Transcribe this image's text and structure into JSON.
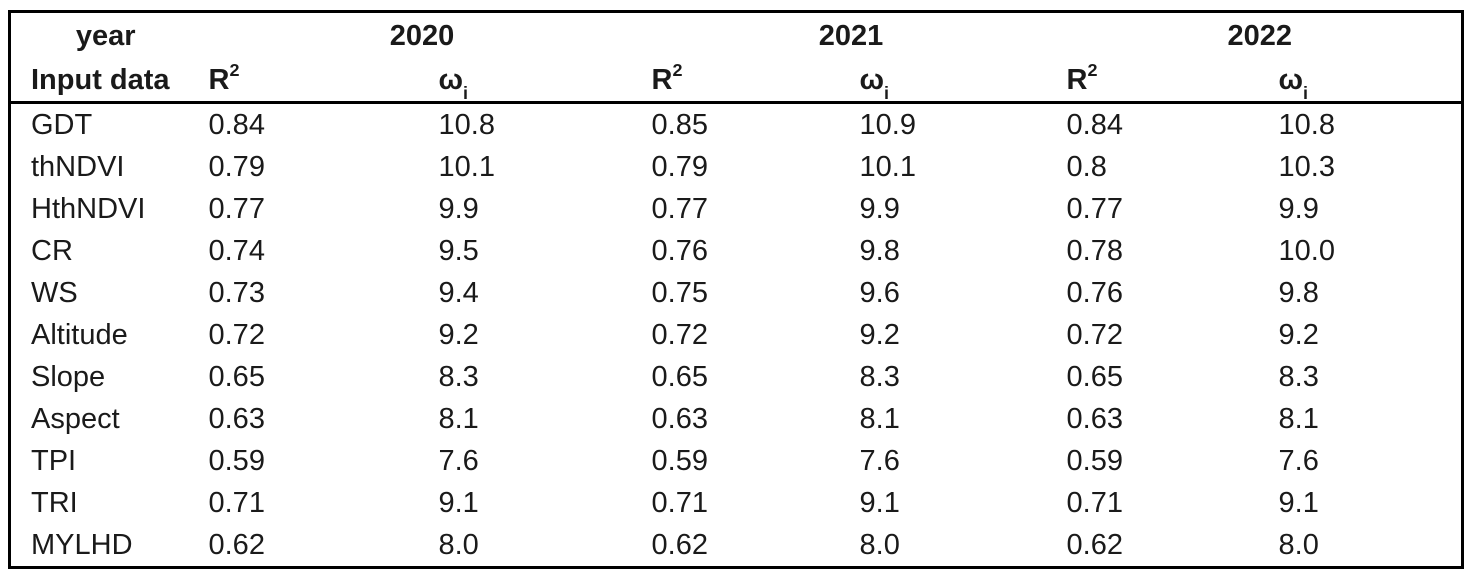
{
  "table": {
    "header": {
      "year_label": "year",
      "input_data_label": "Input data",
      "years": [
        "2020",
        "2021",
        "2022"
      ],
      "r2": {
        "base": "R",
        "sup": "2"
      },
      "omega": {
        "base": "ω",
        "sub": "i"
      }
    },
    "rows": [
      {
        "label": "GDT",
        "values": [
          "0.84",
          "10.8",
          "0.85",
          "10.9",
          "0.84",
          "10.8"
        ]
      },
      {
        "label": "thNDVI",
        "values": [
          "0.79",
          "10.1",
          "0.79",
          "10.1",
          "0.8",
          "10.3"
        ]
      },
      {
        "label": "HthNDVI",
        "values": [
          "0.77",
          "9.9",
          "0.77",
          "9.9",
          "0.77",
          "9.9"
        ]
      },
      {
        "label": "CR",
        "values": [
          "0.74",
          "9.5",
          "0.76",
          "9.8",
          "0.78",
          "10.0"
        ]
      },
      {
        "label": "WS",
        "values": [
          "0.73",
          "9.4",
          "0.75",
          "9.6",
          "0.76",
          "9.8"
        ]
      },
      {
        "label": "Altitude",
        "values": [
          "0.72",
          "9.2",
          "0.72",
          "9.2",
          "0.72",
          "9.2"
        ]
      },
      {
        "label": "Slope",
        "values": [
          "0.65",
          "8.3",
          "0.65",
          "8.3",
          "0.65",
          "8.3"
        ]
      },
      {
        "label": "Aspect",
        "values": [
          "0.63",
          "8.1",
          "0.63",
          "8.1",
          "0.63",
          "8.1"
        ]
      },
      {
        "label": "TPI",
        "values": [
          "0.59",
          "7.6",
          "0.59",
          "7.6",
          "0.59",
          "7.6"
        ]
      },
      {
        "label": "TRI",
        "values": [
          "0.71",
          "9.1",
          "0.71",
          "9.1",
          "0.71",
          "9.1"
        ]
      },
      {
        "label": "MYLHD",
        "values": [
          "0.62",
          "8.0",
          "0.62",
          "8.0",
          "0.62",
          "8.0"
        ]
      }
    ]
  },
  "colors": {
    "text": "#1a1a1a",
    "border": "#000000",
    "background": "#ffffff"
  },
  "chart_data": {
    "type": "table",
    "columns": [
      "Input data",
      "2020 R2",
      "2020 wi",
      "2021 R2",
      "2021 wi",
      "2022 R2",
      "2022 wi"
    ],
    "rows": [
      [
        "GDT",
        0.84,
        10.8,
        0.85,
        10.9,
        0.84,
        10.8
      ],
      [
        "thNDVI",
        0.79,
        10.1,
        0.79,
        10.1,
        0.8,
        10.3
      ],
      [
        "HthNDVI",
        0.77,
        9.9,
        0.77,
        9.9,
        0.77,
        9.9
      ],
      [
        "CR",
        0.74,
        9.5,
        0.76,
        9.8,
        0.78,
        10.0
      ],
      [
        "WS",
        0.73,
        9.4,
        0.75,
        9.6,
        0.76,
        9.8
      ],
      [
        "Altitude",
        0.72,
        9.2,
        0.72,
        9.2,
        0.72,
        9.2
      ],
      [
        "Slope",
        0.65,
        8.3,
        0.65,
        8.3,
        0.65,
        8.3
      ],
      [
        "Aspect",
        0.63,
        8.1,
        0.63,
        8.1,
        0.63,
        8.1
      ],
      [
        "TPI",
        0.59,
        7.6,
        0.59,
        7.6,
        0.59,
        7.6
      ],
      [
        "TRI",
        0.71,
        9.1,
        0.71,
        9.1,
        0.71,
        9.1
      ],
      [
        "MYLHD",
        0.62,
        8.0,
        0.62,
        8.0,
        0.62,
        8.0
      ]
    ]
  }
}
